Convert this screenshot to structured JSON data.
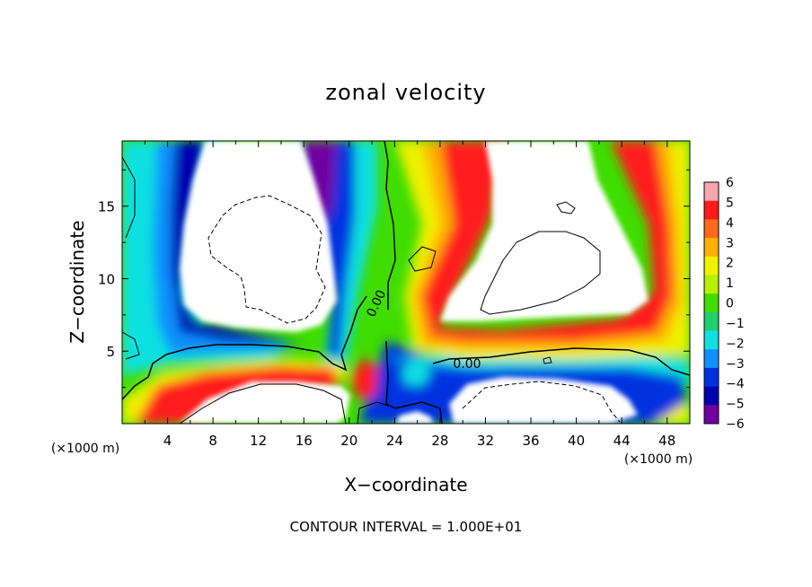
{
  "chart_data": {
    "type": "heatmap",
    "title": "zonal velocity",
    "xlabel": "X−coordinate",
    "ylabel": "Z−coordinate",
    "x_unit_left": "(×1000 m)",
    "x_unit_right": "(×1000 m)",
    "xlim": [
      0,
      50
    ],
    "ylim": [
      0,
      19.5
    ],
    "xticks": [
      "4",
      "8",
      "12",
      "16",
      "20",
      "24",
      "28",
      "32",
      "36",
      "40",
      "44",
      "48"
    ],
    "yticks": [
      "5",
      "10",
      "15"
    ],
    "contour_interval_text": "CONTOUR INTERVAL = 1.000E+01",
    "contour_labels": [
      "0.00",
      "0.00"
    ],
    "colorbar": {
      "min": -6,
      "max": 6,
      "labels": [
        "6",
        "5",
        "4",
        "3",
        "2",
        "1",
        "0",
        "−1",
        "−2",
        "−3",
        "−4",
        "−5",
        "−6"
      ],
      "colors": [
        "#f7a8ae",
        "#ff1a1a",
        "#ff6a1a",
        "#ffb000",
        "#f0f000",
        "#b8f000",
        "#40dd00",
        "#20d070",
        "#10e0e0",
        "#1090ff",
        "#0030e0",
        "#0000b0",
        "#7000a0"
      ]
    },
    "regions_beyond_range": "white"
  }
}
